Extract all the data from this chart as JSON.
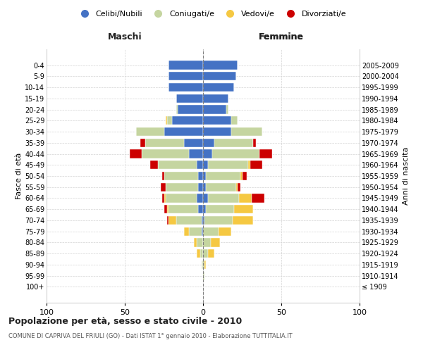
{
  "age_groups": [
    "100+",
    "95-99",
    "90-94",
    "85-89",
    "80-84",
    "75-79",
    "70-74",
    "65-69",
    "60-64",
    "55-59",
    "50-54",
    "45-49",
    "40-44",
    "35-39",
    "30-34",
    "25-29",
    "20-24",
    "15-19",
    "10-14",
    "5-9",
    "0-4"
  ],
  "birth_years": [
    "≤ 1909",
    "1910-1914",
    "1915-1919",
    "1920-1924",
    "1925-1929",
    "1930-1934",
    "1935-1939",
    "1940-1944",
    "1945-1949",
    "1950-1954",
    "1955-1959",
    "1960-1964",
    "1965-1969",
    "1970-1974",
    "1975-1979",
    "1980-1984",
    "1985-1989",
    "1990-1994",
    "1995-1999",
    "2000-2004",
    "2005-2009"
  ],
  "maschi": {
    "celibi": [
      0,
      0,
      0,
      0,
      0,
      1,
      1,
      3,
      4,
      3,
      3,
      4,
      9,
      12,
      25,
      20,
      16,
      17,
      22,
      22,
      22
    ],
    "coniugati": [
      0,
      0,
      1,
      2,
      4,
      8,
      16,
      19,
      20,
      21,
      22,
      25,
      30,
      25,
      18,
      3,
      1,
      0,
      0,
      0,
      0
    ],
    "vedovi": [
      0,
      0,
      0,
      2,
      2,
      3,
      5,
      1,
      1,
      0,
      0,
      0,
      0,
      0,
      0,
      1,
      0,
      0,
      0,
      0,
      0
    ],
    "divorziati": [
      0,
      0,
      0,
      0,
      0,
      0,
      1,
      2,
      1,
      3,
      1,
      5,
      8,
      3,
      0,
      0,
      0,
      0,
      0,
      0,
      0
    ]
  },
  "femmine": {
    "nubili": [
      0,
      0,
      0,
      0,
      0,
      0,
      1,
      2,
      3,
      2,
      2,
      3,
      6,
      7,
      18,
      18,
      15,
      16,
      20,
      21,
      22
    ],
    "coniugate": [
      0,
      1,
      1,
      3,
      5,
      10,
      18,
      18,
      20,
      19,
      22,
      26,
      30,
      25,
      20,
      4,
      1,
      0,
      0,
      0,
      0
    ],
    "vedove": [
      0,
      0,
      1,
      4,
      6,
      8,
      13,
      12,
      8,
      1,
      1,
      1,
      0,
      0,
      0,
      0,
      0,
      0,
      0,
      0,
      0
    ],
    "divorziate": [
      0,
      0,
      0,
      0,
      0,
      0,
      0,
      0,
      8,
      2,
      3,
      8,
      8,
      2,
      0,
      0,
      0,
      0,
      0,
      0,
      0
    ]
  },
  "colors": {
    "celibi_nubili": "#4472C4",
    "coniugati": "#C5D5A0",
    "vedovi": "#F5C842",
    "divorziati": "#CC0000"
  },
  "xlim": 100,
  "title": "Popolazione per età, sesso e stato civile - 2010",
  "subtitle": "COMUNE DI CAPRIVA DEL FRIULI (GO) - Dati ISTAT 1° gennaio 2010 - Elaborazione TUTTITALIA.IT",
  "ylabel_left": "Fasce di età",
  "ylabel_right": "Anni di nascita",
  "xlabel_left": "Maschi",
  "xlabel_right": "Femmine",
  "legend_labels": [
    "Celibi/Nubili",
    "Coniugati/e",
    "Vedovi/e",
    "Divorziati/e"
  ]
}
